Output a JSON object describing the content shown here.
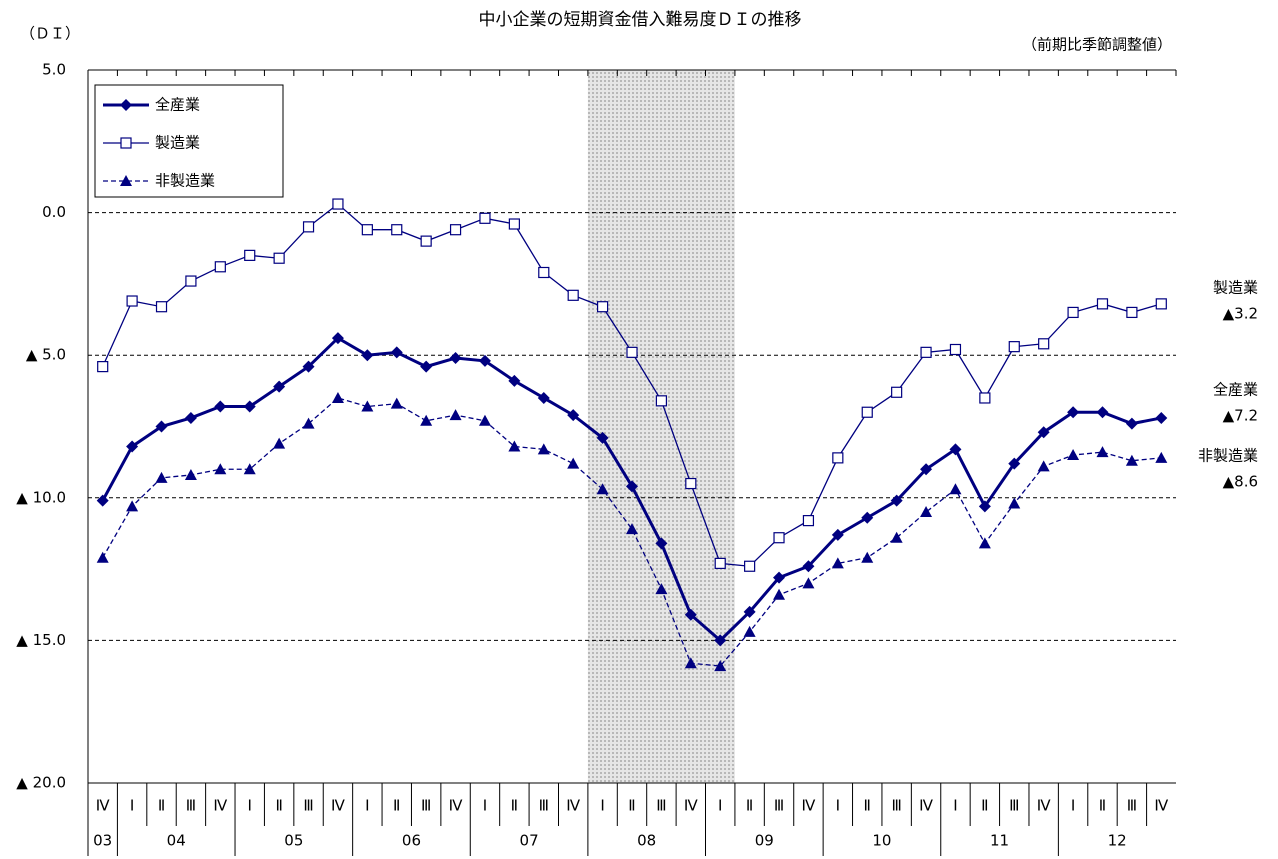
{
  "chart_data": {
    "type": "line",
    "title": "中小企業の短期資金借入難易度ＤＩの推移",
    "y_label": "（ＤＩ）",
    "note": "（前期比季節調整値）",
    "categories": [
      "Ⅳ",
      "Ⅰ",
      "Ⅱ",
      "Ⅲ",
      "Ⅳ",
      "Ⅰ",
      "Ⅱ",
      "Ⅲ",
      "Ⅳ",
      "Ⅰ",
      "Ⅱ",
      "Ⅲ",
      "Ⅳ",
      "Ⅰ",
      "Ⅱ",
      "Ⅲ",
      "Ⅳ",
      "Ⅰ",
      "Ⅱ",
      "Ⅲ",
      "Ⅳ",
      "Ⅰ",
      "Ⅱ",
      "Ⅲ",
      "Ⅳ",
      "Ⅰ",
      "Ⅱ",
      "Ⅲ",
      "Ⅳ",
      "Ⅰ",
      "Ⅱ",
      "Ⅲ",
      "Ⅳ",
      "Ⅰ",
      "Ⅱ",
      "Ⅲ",
      "Ⅳ"
    ],
    "years": [
      "03",
      "04",
      null,
      null,
      null,
      "05",
      null,
      null,
      null,
      "06",
      null,
      null,
      null,
      "07",
      null,
      null,
      null,
      "08",
      null,
      null,
      null,
      "09",
      null,
      null,
      null,
      "10",
      null,
      null,
      null,
      "11",
      null,
      null,
      null,
      "12",
      null,
      null,
      null
    ],
    "shaded_categories": [
      17,
      21
    ],
    "ylim": [
      -20,
      5
    ],
    "yticks": [
      {
        "value": 5,
        "label": "5.0"
      },
      {
        "value": 0,
        "label": "0.0"
      },
      {
        "value": -5,
        "label": "▲ 5.0"
      },
      {
        "value": -10,
        "label": "▲ 10.0"
      },
      {
        "value": -15,
        "label": "▲ 15.0"
      },
      {
        "value": -20,
        "label": "▲ 20.0"
      }
    ],
    "grid": true,
    "legend": "upper left",
    "series": [
      {
        "name": "全産業",
        "color": "#000080",
        "marker": "diamond",
        "line_style": "solid",
        "line_width": 3,
        "last_label": "▲7.2",
        "values": [
          -10.1,
          -8.2,
          -7.5,
          -7.2,
          -6.8,
          -6.8,
          -6.1,
          -5.4,
          -4.4,
          -5.0,
          -4.9,
          -5.4,
          -5.1,
          -5.2,
          -5.9,
          -6.5,
          -7.1,
          -7.9,
          -9.6,
          -11.6,
          -14.1,
          -15.0,
          -14.0,
          -12.8,
          -12.4,
          -11.3,
          -10.7,
          -10.1,
          -9.0,
          -8.3,
          -10.3,
          -8.8,
          -7.7,
          -7.0,
          -7.0,
          -7.4,
          -7.2
        ]
      },
      {
        "name": "製造業",
        "color": "#000080",
        "marker": "square",
        "line_style": "solid",
        "line_width": 1.3,
        "last_label": "▲3.2",
        "values": [
          -5.4,
          -3.1,
          -3.3,
          -2.4,
          -1.9,
          -1.5,
          -1.6,
          -0.5,
          0.3,
          -0.6,
          -0.6,
          -1.0,
          -0.6,
          -0.2,
          -0.4,
          -2.1,
          -2.9,
          -3.3,
          -4.9,
          -6.6,
          -9.5,
          -12.3,
          -12.4,
          -11.4,
          -10.8,
          -8.6,
          -7.0,
          -6.3,
          -4.9,
          -4.8,
          -6.5,
          -4.7,
          -4.6,
          -3.5,
          -3.2,
          -3.5,
          -3.2
        ]
      },
      {
        "name": "非製造業",
        "color": "#000080",
        "marker": "triangle",
        "line_style": "dashed",
        "line_width": 1.3,
        "last_label": "▲8.6",
        "values": [
          -12.1,
          -10.3,
          -9.3,
          -9.2,
          -9.0,
          -9.0,
          -8.1,
          -7.4,
          -6.5,
          -6.8,
          -6.7,
          -7.3,
          -7.1,
          -7.3,
          -8.2,
          -8.3,
          -8.8,
          -9.7,
          -11.1,
          -13.2,
          -15.8,
          -15.9,
          -14.7,
          -13.4,
          -13.0,
          -12.3,
          -12.1,
          -11.4,
          -10.5,
          -9.7,
          -11.6,
          -10.2,
          -8.9,
          -8.5,
          -8.4,
          -8.7,
          -8.6
        ]
      }
    ]
  }
}
